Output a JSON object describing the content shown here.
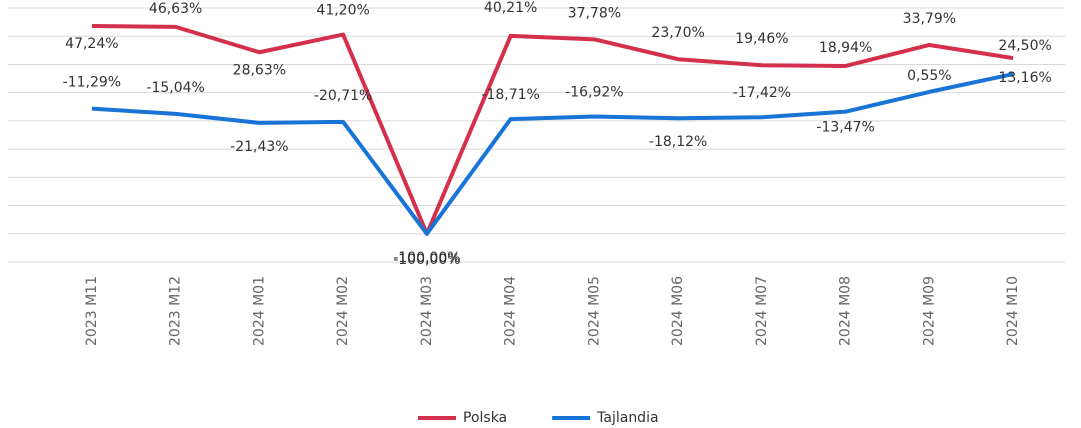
{
  "chart_data": {
    "type": "line",
    "categories": [
      "2023 M11",
      "2023 M12",
      "2024 M01",
      "2024 M02",
      "2024 M03",
      "2024 M04",
      "2024 M05",
      "2024 M06",
      "2024 M07",
      "2024 M08",
      "2024 M09",
      "2024 M10"
    ],
    "series": [
      {
        "name": "Polska",
        "color": "#d4304b",
        "values": [
          47.24,
          46.63,
          28.63,
          41.2,
          -100,
          40.21,
          37.78,
          23.7,
          19.46,
          18.94,
          33.79,
          24.5
        ],
        "value_labels": [
          "47,24%",
          "46,63%",
          "28,63%",
          "41,20%",
          "-100,00%",
          "40,21%",
          "37,78%",
          "23,70%",
          "19,46%",
          "18,94%",
          "33,79%",
          "24,50%"
        ]
      },
      {
        "name": "Tajlandia",
        "color": "#1874d6",
        "values": [
          -11.29,
          -15.04,
          -21.43,
          -20.71,
          -100,
          -18.71,
          -16.92,
          -18.12,
          -17.42,
          -13.47,
          0.55,
          13.16
        ],
        "value_labels": [
          "-11,29%",
          "-15,04%",
          "-21,43%",
          "-20,71%",
          "-100,00%",
          "-18,71%",
          "-16,92%",
          "-18,12%",
          "-17,42%",
          "-13,47%",
          "0,55%",
          "13,16%"
        ]
      }
    ],
    "ylim": [
      -120,
      60
    ],
    "yticks": [
      -120,
      -100,
      -80,
      -60,
      -40,
      -20,
      0,
      20,
      40,
      60
    ],
    "grid": true,
    "legend": "bottom"
  }
}
